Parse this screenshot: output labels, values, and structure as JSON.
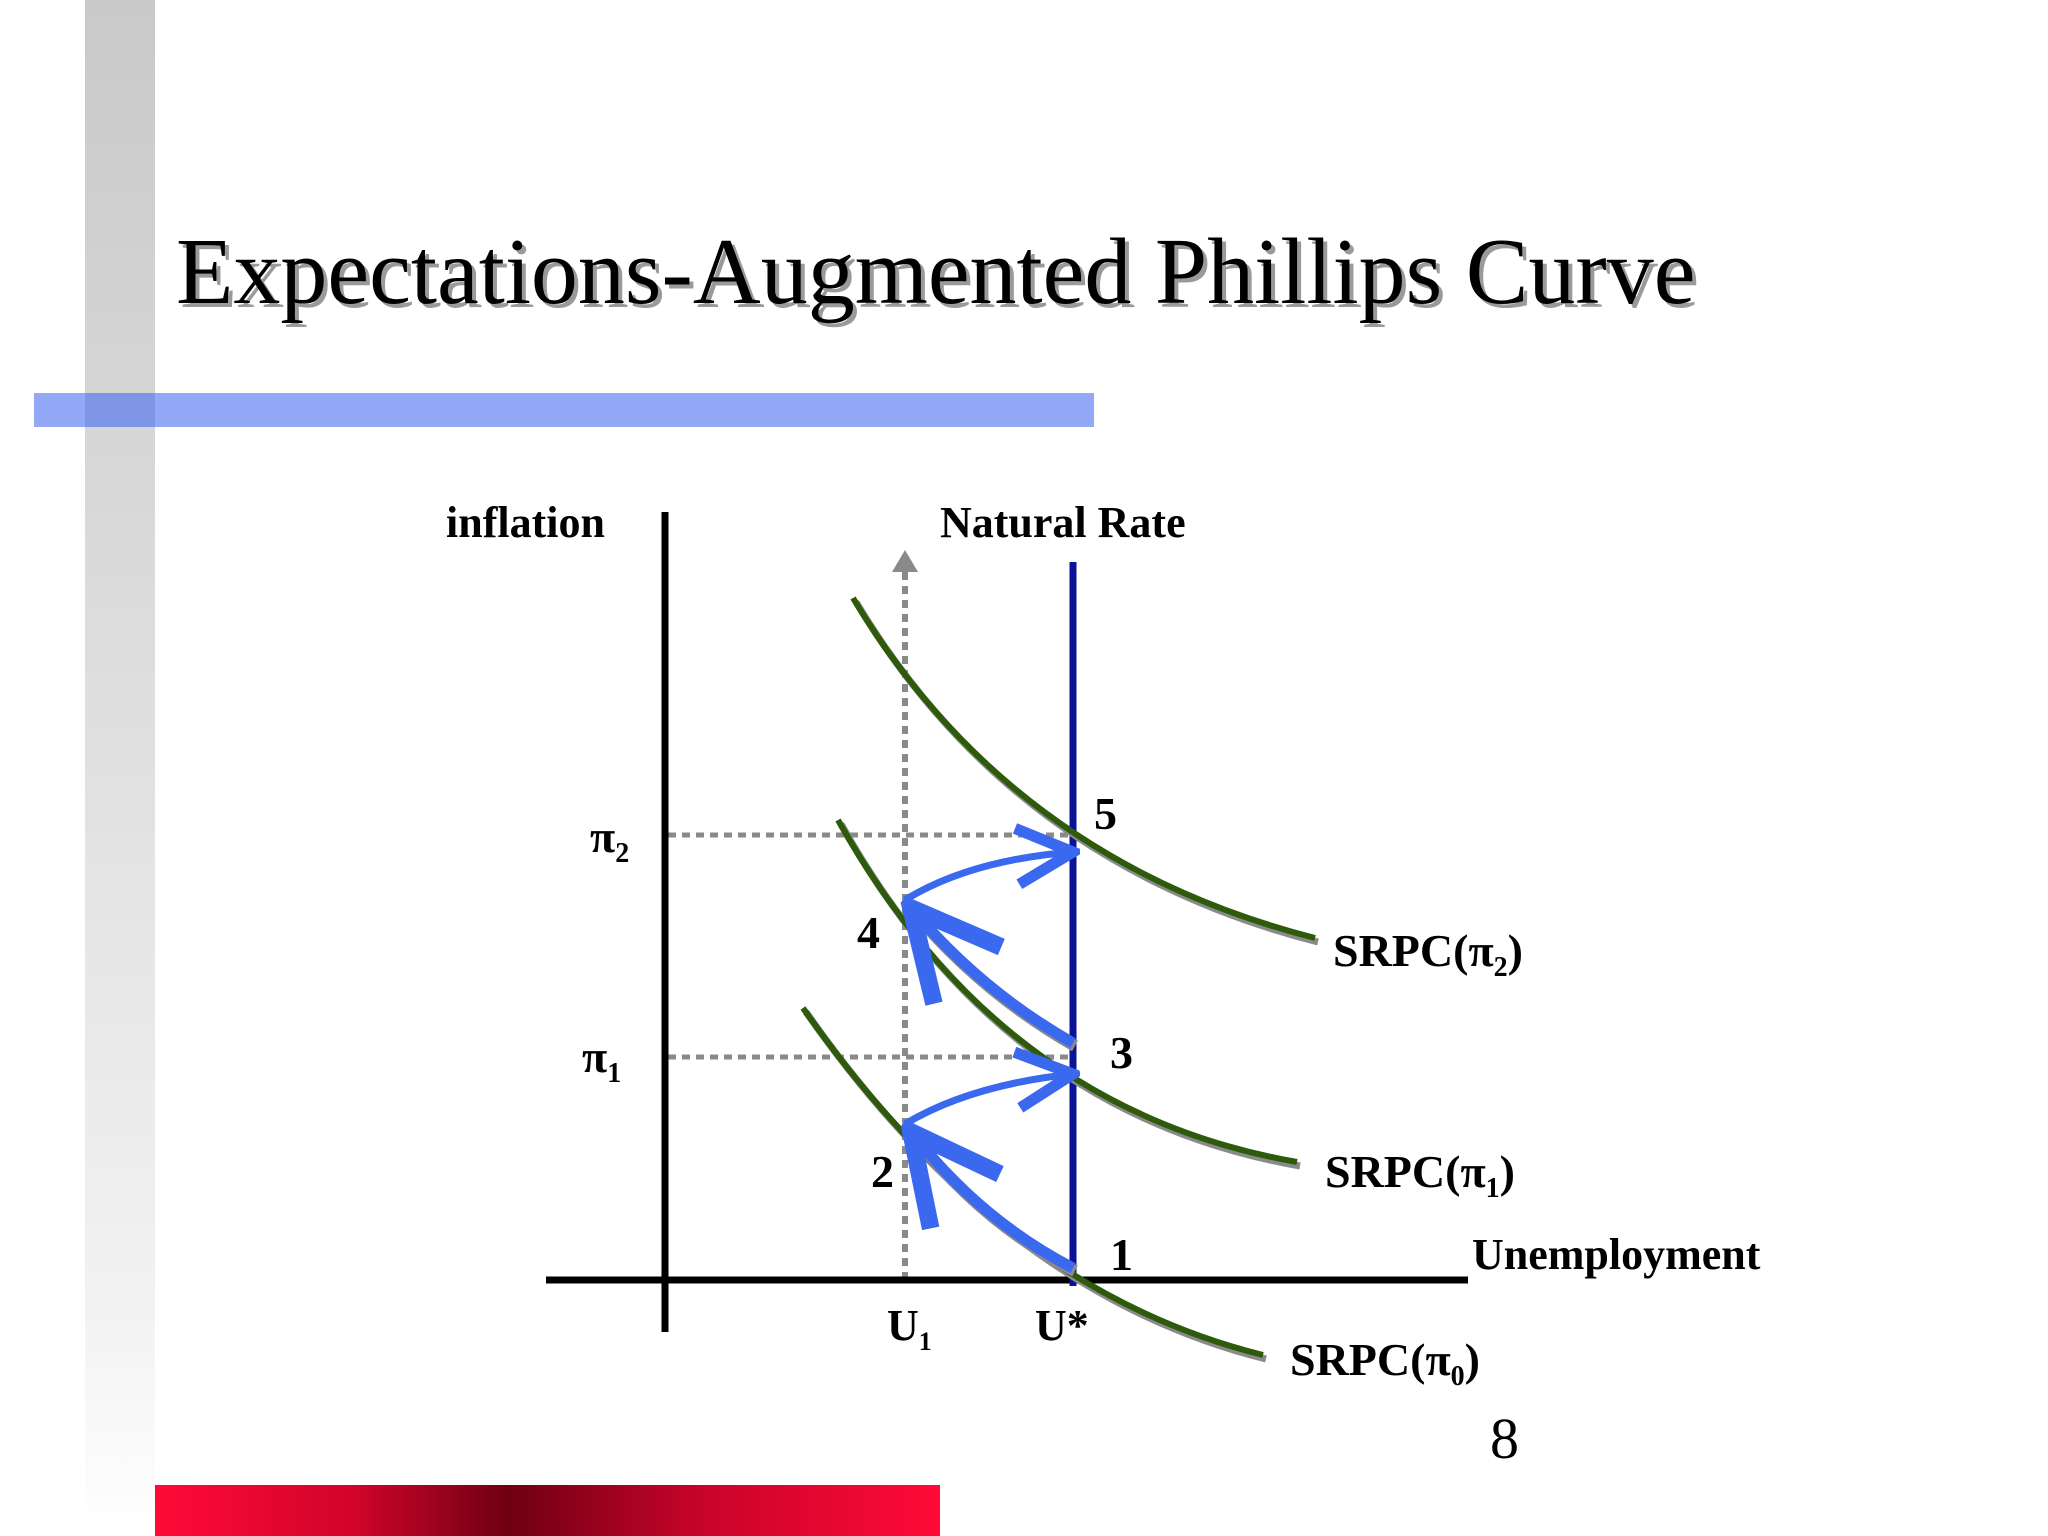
{
  "slide": {
    "title": "Expectations-Augmented Phillips Curve",
    "page_number": "8"
  },
  "diagram": {
    "y_axis_label": "inflation",
    "x_axis_label": "Unemployment",
    "natural_rate_label": "Natural Rate",
    "y_ticks": [
      {
        "symbol": "π",
        "sub": "2"
      },
      {
        "symbol": "π",
        "sub": "1"
      }
    ],
    "x_ticks": [
      {
        "symbol": "U",
        "sub": "1"
      },
      {
        "symbol": "U*",
        "sub": ""
      }
    ],
    "curves": [
      {
        "prefix": "SRPC(π",
        "sub": "0",
        "suffix": ")"
      },
      {
        "prefix": "SRPC(π",
        "sub": "1",
        "suffix": ")"
      },
      {
        "prefix": "SRPC(π",
        "sub": "2",
        "suffix": ")"
      }
    ],
    "points": [
      "1",
      "2",
      "3",
      "4",
      "5"
    ],
    "colors": {
      "curve": "#2e5a0c",
      "curve_shadow": "#8a8a8a",
      "natural_rate": "#0a1297",
      "arrow": "#3a68ef",
      "guide": "#8a8a8a",
      "title_bar": "#93a9f7",
      "bottom_bar": "#ff0a37"
    }
  }
}
